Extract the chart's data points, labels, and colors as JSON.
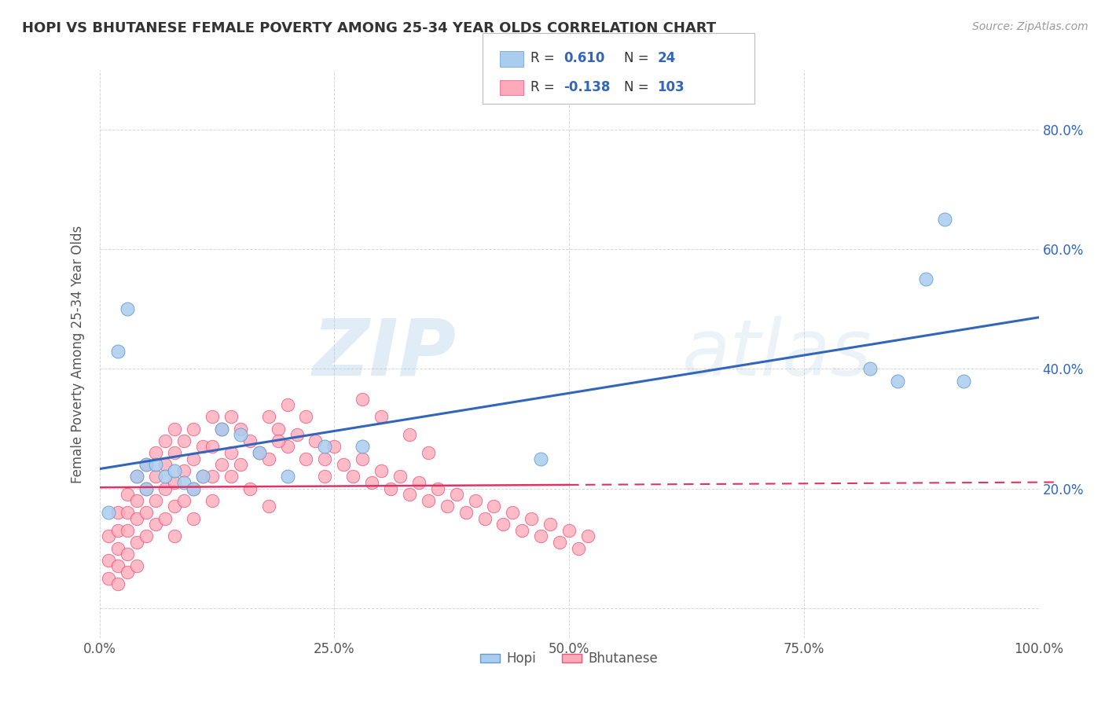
{
  "title": "HOPI VS BHUTANESE FEMALE POVERTY AMONG 25-34 YEAR OLDS CORRELATION CHART",
  "source": "Source: ZipAtlas.com",
  "ylabel": "Female Poverty Among 25-34 Year Olds",
  "xlim": [
    0.0,
    1.0
  ],
  "ylim": [
    -0.05,
    0.9
  ],
  "yticks": [
    0.0,
    0.2,
    0.4,
    0.6,
    0.8
  ],
  "xticks": [
    0.0,
    0.25,
    0.5,
    0.75,
    1.0
  ],
  "xticklabels": [
    "0.0%",
    "25.0%",
    "50.0%",
    "75.0%",
    "100.0%"
  ],
  "yticklabels": [
    "",
    "20.0%",
    "40.0%",
    "60.0%",
    "80.0%"
  ],
  "hopi_R": 0.61,
  "hopi_N": 24,
  "bhutanese_R": -0.138,
  "bhutanese_N": 103,
  "hopi_color": "#aaccee",
  "bhutanese_color": "#ffaabb",
  "hopi_edge_color": "#6699cc",
  "bhutanese_edge_color": "#ee5577",
  "hopi_line_color": "#3366bb",
  "bhutanese_line_color": "#dd3366",
  "legend_text_color": "#3366bb",
  "watermark_color": "#c8ddf0",
  "background_color": "#ffffff",
  "grid_color": "#bbbbbb",
  "hopi_x": [
    0.01,
    0.02,
    0.03,
    0.04,
    0.05,
    0.05,
    0.06,
    0.07,
    0.08,
    0.09,
    0.1,
    0.11,
    0.13,
    0.15,
    0.17,
    0.2,
    0.24,
    0.28,
    0.47,
    0.82,
    0.85,
    0.88,
    0.9,
    0.92
  ],
  "hopi_y": [
    0.16,
    0.43,
    0.5,
    0.22,
    0.2,
    0.24,
    0.24,
    0.22,
    0.23,
    0.21,
    0.2,
    0.22,
    0.3,
    0.29,
    0.26,
    0.22,
    0.27,
    0.27,
    0.25,
    0.4,
    0.38,
    0.55,
    0.65,
    0.38
  ],
  "bhutanese_x": [
    0.01,
    0.01,
    0.01,
    0.02,
    0.02,
    0.02,
    0.02,
    0.02,
    0.03,
    0.03,
    0.03,
    0.03,
    0.03,
    0.04,
    0.04,
    0.04,
    0.04,
    0.04,
    0.05,
    0.05,
    0.05,
    0.05,
    0.06,
    0.06,
    0.06,
    0.06,
    0.07,
    0.07,
    0.07,
    0.07,
    0.08,
    0.08,
    0.08,
    0.08,
    0.09,
    0.09,
    0.09,
    0.1,
    0.1,
    0.1,
    0.11,
    0.11,
    0.12,
    0.12,
    0.12,
    0.13,
    0.13,
    0.14,
    0.14,
    0.15,
    0.15,
    0.16,
    0.17,
    0.18,
    0.18,
    0.19,
    0.2,
    0.2,
    0.21,
    0.22,
    0.23,
    0.24,
    0.25,
    0.26,
    0.27,
    0.28,
    0.29,
    0.3,
    0.31,
    0.32,
    0.33,
    0.34,
    0.35,
    0.36,
    0.37,
    0.38,
    0.39,
    0.4,
    0.41,
    0.42,
    0.43,
    0.44,
    0.45,
    0.46,
    0.47,
    0.48,
    0.49,
    0.5,
    0.51,
    0.52,
    0.28,
    0.3,
    0.33,
    0.35,
    0.19,
    0.22,
    0.24,
    0.16,
    0.18,
    0.1,
    0.08,
    0.12,
    0.14
  ],
  "bhutanese_y": [
    0.12,
    0.08,
    0.05,
    0.16,
    0.13,
    0.1,
    0.07,
    0.04,
    0.19,
    0.16,
    0.13,
    0.09,
    0.06,
    0.22,
    0.18,
    0.15,
    0.11,
    0.07,
    0.24,
    0.2,
    0.16,
    0.12,
    0.26,
    0.22,
    0.18,
    0.14,
    0.28,
    0.24,
    0.2,
    0.15,
    0.3,
    0.26,
    0.21,
    0.17,
    0.28,
    0.23,
    0.18,
    0.3,
    0.25,
    0.2,
    0.27,
    0.22,
    0.32,
    0.27,
    0.22,
    0.3,
    0.24,
    0.32,
    0.26,
    0.3,
    0.24,
    0.28,
    0.26,
    0.32,
    0.25,
    0.3,
    0.34,
    0.27,
    0.29,
    0.32,
    0.28,
    0.25,
    0.27,
    0.24,
    0.22,
    0.25,
    0.21,
    0.23,
    0.2,
    0.22,
    0.19,
    0.21,
    0.18,
    0.2,
    0.17,
    0.19,
    0.16,
    0.18,
    0.15,
    0.17,
    0.14,
    0.16,
    0.13,
    0.15,
    0.12,
    0.14,
    0.11,
    0.13,
    0.1,
    0.12,
    0.35,
    0.32,
    0.29,
    0.26,
    0.28,
    0.25,
    0.22,
    0.2,
    0.17,
    0.15,
    0.12,
    0.18,
    0.22
  ]
}
